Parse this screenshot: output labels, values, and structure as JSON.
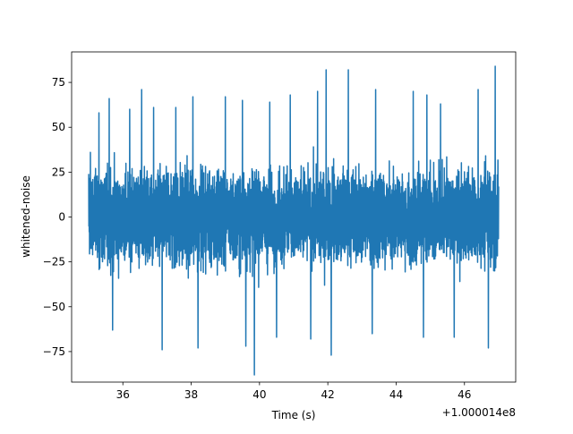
{
  "chart_data": {
    "type": "line",
    "title": "",
    "xlabel": "Time (s)",
    "ylabel": "whitened-noise",
    "x_offset_label": "+1.000014e8",
    "xlim": [
      34.5,
      47.5
    ],
    "ylim": [
      -92,
      92
    ],
    "x_ticks": [
      {
        "value": 36,
        "label": "36"
      },
      {
        "value": 38,
        "label": "38"
      },
      {
        "value": 40,
        "label": "40"
      },
      {
        "value": 42,
        "label": "42"
      },
      {
        "value": 44,
        "label": "44"
      },
      {
        "value": 46,
        "label": "46"
      }
    ],
    "y_ticks": [
      {
        "value": -75,
        "label": "−75"
      },
      {
        "value": -50,
        "label": "−50"
      },
      {
        "value": -25,
        "label": "−25"
      },
      {
        "value": 0,
        "label": "0"
      },
      {
        "value": 25,
        "label": "25"
      },
      {
        "value": 50,
        "label": "50"
      },
      {
        "value": 75,
        "label": "75"
      }
    ],
    "grid": false,
    "series": [
      {
        "color": "#1f77b4",
        "x_range": [
          35.0,
          47.0
        ],
        "typical_band": [
          -37,
          37
        ],
        "peaks": [
          {
            "x": 35.05,
            "y": 36
          },
          {
            "x": 35.3,
            "y": 58
          },
          {
            "x": 35.6,
            "y": 66
          },
          {
            "x": 36.2,
            "y": 60
          },
          {
            "x": 36.55,
            "y": 71
          },
          {
            "x": 36.9,
            "y": 61
          },
          {
            "x": 37.55,
            "y": 61
          },
          {
            "x": 38.05,
            "y": 67
          },
          {
            "x": 39.0,
            "y": 67
          },
          {
            "x": 39.5,
            "y": 65
          },
          {
            "x": 40.3,
            "y": 64
          },
          {
            "x": 40.9,
            "y": 68
          },
          {
            "x": 41.7,
            "y": 70
          },
          {
            "x": 41.95,
            "y": 82
          },
          {
            "x": 42.6,
            "y": 82
          },
          {
            "x": 43.4,
            "y": 71
          },
          {
            "x": 44.5,
            "y": 70
          },
          {
            "x": 44.9,
            "y": 68
          },
          {
            "x": 45.3,
            "y": 63
          },
          {
            "x": 46.4,
            "y": 71
          },
          {
            "x": 46.7,
            "y": 62
          },
          {
            "x": 46.9,
            "y": 84
          }
        ],
        "troughs": [
          {
            "x": 35.7,
            "y": -63
          },
          {
            "x": 37.15,
            "y": -74
          },
          {
            "x": 38.2,
            "y": -73
          },
          {
            "x": 39.6,
            "y": -72
          },
          {
            "x": 39.85,
            "y": -88
          },
          {
            "x": 40.5,
            "y": -67
          },
          {
            "x": 41.5,
            "y": -68
          },
          {
            "x": 42.1,
            "y": -77
          },
          {
            "x": 43.3,
            "y": -65
          },
          {
            "x": 44.8,
            "y": -67
          },
          {
            "x": 45.7,
            "y": -67
          },
          {
            "x": 46.7,
            "y": -73
          }
        ]
      }
    ]
  }
}
